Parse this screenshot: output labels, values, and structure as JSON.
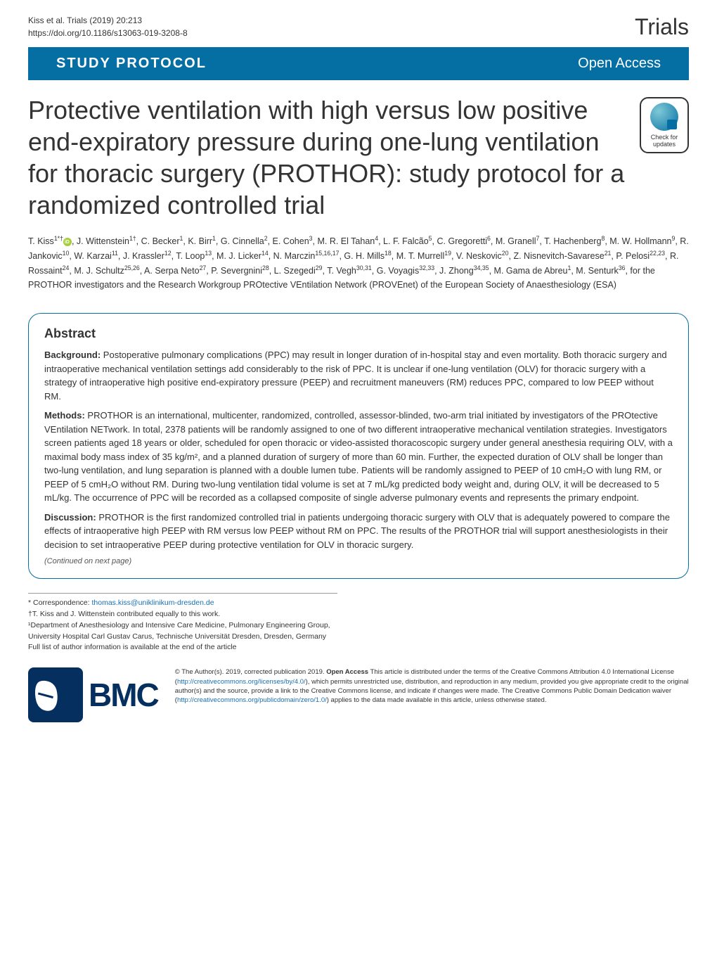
{
  "header": {
    "citation_line1": "Kiss et al. Trials          (2019) 20:213",
    "citation_line2": "https://doi.org/10.1186/s13063-019-3208-8",
    "journal": "Trials"
  },
  "banner": {
    "category": "STUDY PROTOCOL",
    "access": "Open Access"
  },
  "article": {
    "title": "Protective ventilation with high versus low positive end-expiratory pressure during one-lung ventilation for thoracic surgery (PROTHOR): study protocol for a randomized controlled trial",
    "check_updates_label": "Check for updates"
  },
  "authors_html": "T. Kiss<sup>1*†</sup><span class='orcid-icon' data-name='orcid-icon' data-interactable='false'></span>, J. Wittenstein<sup>1†</sup>, C. Becker<sup>1</sup>, K. Birr<sup>1</sup>, G. Cinnella<sup>2</sup>, E. Cohen<sup>3</sup>, M. R. El Tahan<sup>4</sup>, L. F. Falcão<sup>5</sup>, C. Gregoretti<sup>6</sup>, M. Granell<sup>7</sup>, T. Hachenberg<sup>8</sup>, M. W. Hollmann<sup>9</sup>, R. Jankovic<sup>10</sup>, W. Karzai<sup>11</sup>, J. Krassler<sup>12</sup>, T. Loop<sup>13</sup>, M. J. Licker<sup>14</sup>, N. Marczin<sup>15,16,17</sup>, G. H. Mills<sup>18</sup>, M. T. Murrell<sup>19</sup>, V. Neskovic<sup>20</sup>, Z. Nisnevitch-Savarese<sup>21</sup>, P. Pelosi<sup>22,23</sup>, R. Rossaint<sup>24</sup>, M. J. Schultz<sup>25,26</sup>, A. Serpa Neto<sup>27</sup>, P. Severgnini<sup>28</sup>, L. Szegedi<sup>29</sup>, T. Vegh<sup>30,31</sup>, G. Voyagis<sup>32,33</sup>, J. Zhong<sup>34,35</sup>, M. Gama de Abreu<sup>1</sup>, M. Senturk<sup>36</sup>, for the PROTHOR investigators and the Research Workgroup PROtective VEntilation Network (PROVEnet) of the European Society of Anaesthesiology (ESA)",
  "abstract": {
    "heading": "Abstract",
    "background_label": "Background:",
    "background": "Postoperative pulmonary complications (PPC) may result in longer duration of in-hospital stay and even mortality. Both thoracic surgery and intraoperative mechanical ventilation settings add considerably to the risk of PPC. It is unclear if one-lung ventilation (OLV) for thoracic surgery with a strategy of intraoperative high positive end-expiratory pressure (PEEP) and recruitment maneuvers (RM) reduces PPC, compared to low PEEP without RM.",
    "methods_label": "Methods:",
    "methods": "PROTHOR is an international, multicenter, randomized, controlled, assessor-blinded, two-arm trial initiated by investigators of the PROtective VEntilation NETwork. In total, 2378 patients will be randomly assigned to one of two different intraoperative mechanical ventilation strategies. Investigators screen patients aged 18 years or older, scheduled for open thoracic or video-assisted thoracoscopic surgery under general anesthesia requiring OLV, with a maximal body mass index of 35 kg/m², and a planned duration of surgery of more than 60 min. Further, the expected duration of OLV shall be longer than two-lung ventilation, and lung separation is planned with a double lumen tube. Patients will be randomly assigned to PEEP of 10 cmH₂O with lung RM, or PEEP of 5 cmH₂O without RM. During two-lung ventilation tidal volume is set at 7 mL/kg predicted body weight and, during OLV, it will be decreased to 5 mL/kg. The occurrence of PPC will be recorded as a collapsed composite of single adverse pulmonary events and represents the primary endpoint.",
    "discussion_label": "Discussion:",
    "discussion": "PROTHOR is the first randomized controlled trial in patients undergoing thoracic surgery with OLV that is adequately powered to compare the effects of intraoperative high PEEP with RM versus low PEEP without RM on PPC. The results of the PROTHOR trial will support anesthesiologists in their decision to set intraoperative PEEP during protective ventilation for OLV in thoracic surgery.",
    "continued": "(Continued on next page)"
  },
  "correspondence": {
    "line1_prefix": "* Correspondence: ",
    "email": "thomas.kiss@uniklinikum-dresden.de",
    "line2": "†T. Kiss and J. Wittenstein contributed equally to this work.",
    "line3": "¹Department of Anesthesiology and Intensive Care Medicine, Pulmonary Engineering Group, University Hospital Carl Gustav Carus, Technische Universität Dresden, Dresden, Germany",
    "line4": "Full list of author information is available at the end of the article"
  },
  "footer": {
    "bmc": "BMC",
    "license_html": "© The Author(s). 2019, corrected publication 2019. <b>Open Access</b> This article is distributed under the terms of the Creative Commons Attribution 4.0 International License (<a href='#'>http://creativecommons.org/licenses/by/4.0/</a>), which permits unrestricted use, distribution, and reproduction in any medium, provided you give appropriate credit to the original author(s) and the source, provide a link to the Creative Commons license, and indicate if changes were made. The Creative Commons Public Domain Dedication waiver (<a href='#'>http://creativecommons.org/publicdomain/zero/1.0/</a>) applies to the data made available in this article, unless otherwise stated."
  },
  "colors": {
    "banner_bg": "#056fa3",
    "abstract_border": "#056fa3",
    "bmc_navy": "#052f5f",
    "link": "#1a6fb0",
    "orcid": "#a6ce39"
  }
}
